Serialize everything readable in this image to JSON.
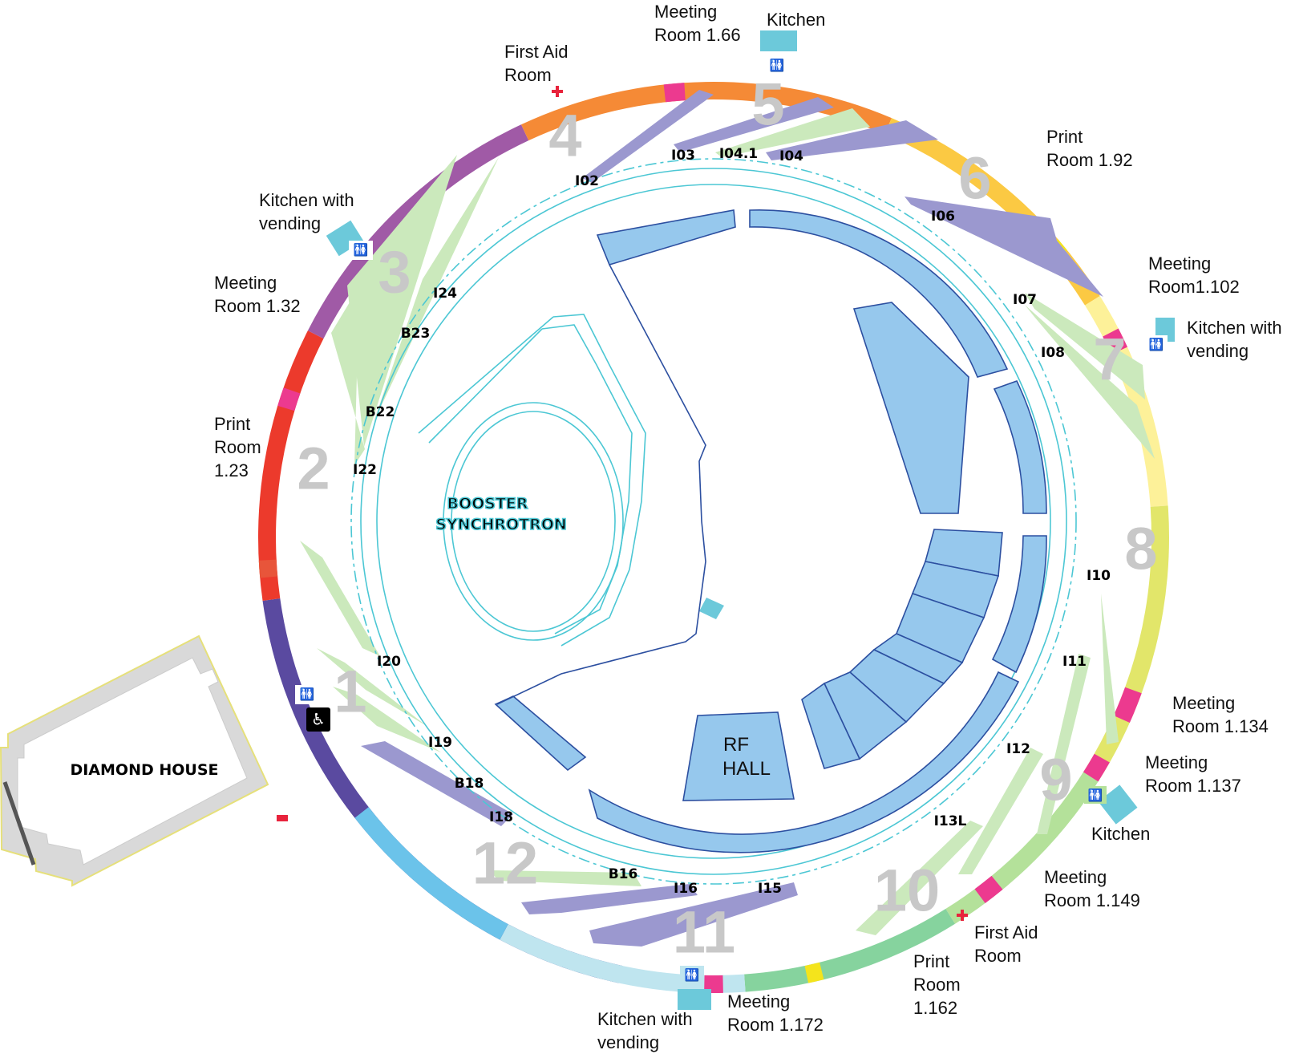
{
  "ring_segments": [
    {
      "name": "sector-1",
      "color": "#2e3f99",
      "from": 220,
      "to": 258
    },
    {
      "name": "sector-2",
      "color": "#5a4aa0",
      "from": 188,
      "to": 220
    },
    {
      "name": "sector-3",
      "color": "#ec3a2c",
      "from": 153,
      "to": 188
    },
    {
      "name": "sector-4",
      "color": "#a05aa6",
      "from": 115,
      "to": 153
    },
    {
      "name": "sector-5",
      "color": "#f58a36",
      "from": 67,
      "to": 115
    },
    {
      "name": "sector-6",
      "color": "#fbc943",
      "from": 32,
      "to": 67
    },
    {
      "name": "sector-7",
      "color": "#fdf199",
      "from": 4,
      "to": 32
    },
    {
      "name": "sector-8",
      "color": "#e2e66a",
      "from": -32,
      "to": 4
    },
    {
      "name": "sector-9",
      "color": "#b4e19a",
      "from": -58,
      "to": -32
    },
    {
      "name": "sector-10",
      "color": "#86d39e",
      "from": -86,
      "to": -58
    },
    {
      "name": "sector-11",
      "color": "#bfe5ef",
      "from": -118,
      "to": -86
    },
    {
      "name": "sector-12",
      "color": "#6bc3ea",
      "from": -142,
      "to": -118
    }
  ],
  "sector_numbers": [
    "1",
    "2",
    "3",
    "4",
    "5",
    "6",
    "7",
    "8",
    "9",
    "10",
    "11",
    "12"
  ],
  "beamlines": {
    "i02": "I02",
    "i03": "I03",
    "i04_1": "I04.1",
    "i04": "I04",
    "i06": "I06",
    "i07": "I07",
    "i08": "I08",
    "i10": "I10",
    "i11": "I11",
    "i12": "I12",
    "i13l": "I13L",
    "i15": "I15",
    "i16": "I16",
    "b16": "B16",
    "i18": "I18",
    "b18": "B18",
    "i19": "I19",
    "i20": "I20",
    "i22": "I22",
    "b22": "B22",
    "b23": "B23",
    "i24": "I24"
  },
  "rooms": {
    "meeting_166": [
      "Meeting",
      "Room 1.66"
    ],
    "kitchen_top": [
      "Kitchen"
    ],
    "first_aid_top": [
      "First Aid",
      "Room"
    ],
    "kitchen_vending_left": [
      "Kitchen with",
      "vending"
    ],
    "meeting_132": [
      "Meeting",
      "Room 1.32"
    ],
    "print_123": [
      "Print",
      "Room",
      "1.23"
    ],
    "print_192": [
      "Print",
      "Room 1.92"
    ],
    "meeting_1102": [
      "Meeting",
      "Room1.102"
    ],
    "kitchen_vending_right": [
      "Kitchen with",
      "vending"
    ],
    "meeting_1134": [
      "Meeting",
      "Room 1.134"
    ],
    "meeting_1137": [
      "Meeting",
      "Room 1.137"
    ],
    "kitchen_right": [
      "Kitchen"
    ],
    "meeting_1149": [
      "Meeting",
      "Room 1.149"
    ],
    "first_aid_bottom": [
      "First Aid",
      "Room"
    ],
    "print_1162": [
      "Print",
      "Room",
      "1.162"
    ],
    "meeting_1172": [
      "Meeting",
      "Room 1.172"
    ],
    "kitchen_vending_bottom": [
      "Kitchen with",
      "vending"
    ]
  },
  "labels": {
    "booster": [
      "BOOSTER",
      "SYNCHROTRON"
    ],
    "rf_hall": [
      "RF",
      "HALL"
    ],
    "diamond_house": "DIAMOND HOUSE"
  },
  "colors": {
    "meeting": "#ec3a8f",
    "kitchen": "#6cc9da",
    "print": "#f4e41c",
    "first_aid": "#e8233c",
    "beamline_light": "#cbe9bc",
    "beamline_purple": "#9b98cf",
    "building_blue": "#96c8ed",
    "building_stroke": "#2c4fa0",
    "storage_ring_line": "#4cc7d4",
    "sector_number": "#c8c8c8"
  },
  "icons": [
    "toilet-icon",
    "wheelchair-icon",
    "first-aid-cross-icon"
  ]
}
